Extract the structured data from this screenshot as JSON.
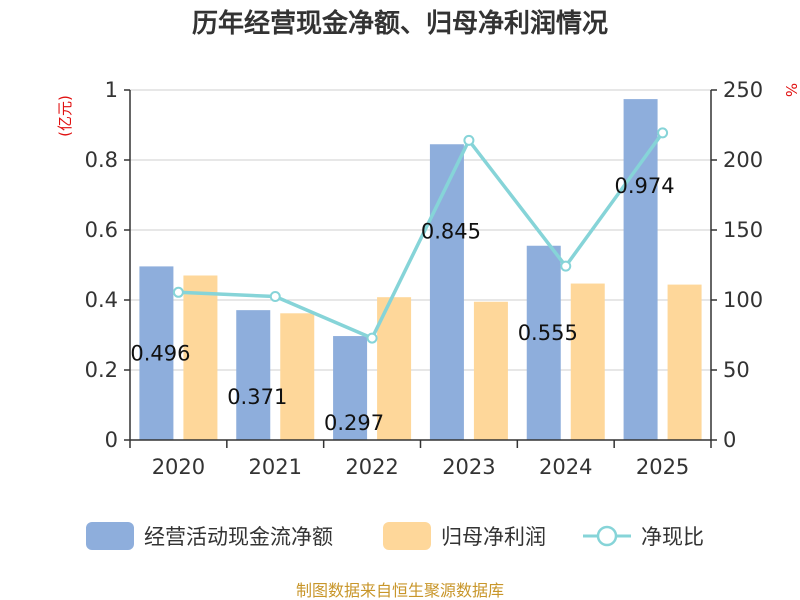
{
  "chart_data": {
    "type": "bar",
    "title": "历年经营现金净额、归母净利润情况",
    "y_unit_left": "(亿元)",
    "y_unit_right": "%",
    "categories": [
      "2020",
      "2021",
      "2022",
      "2023",
      "2024",
      "2025"
    ],
    "ylim_left": [
      0,
      1
    ],
    "yticks_left": [
      "0",
      "0.2",
      "0.4",
      "0.6",
      "0.8",
      "1"
    ],
    "ylim_right": [
      0,
      250
    ],
    "yticks_right": [
      "0",
      "50",
      "100",
      "150",
      "200",
      "250"
    ],
    "grid": true,
    "legend_position": "bottom",
    "series": [
      {
        "name": "经营活动现金流净额",
        "kind": "bar",
        "axis": "left",
        "color": "#8eaedc",
        "values": [
          0.496,
          0.371,
          0.297,
          0.845,
          0.555,
          0.974
        ],
        "labels": [
          "0.496",
          "0.371",
          "0.297",
          "0.845",
          "0.555",
          "0.974"
        ]
      },
      {
        "name": "归母净利润",
        "kind": "bar",
        "axis": "left",
        "color": "#fed79a",
        "values": [
          0.47,
          0.362,
          0.408,
          0.395,
          0.447,
          0.444
        ]
      },
      {
        "name": "净现比",
        "kind": "line",
        "axis": "right",
        "color": "#86d4d8",
        "values": [
          105.5,
          102.5,
          72.8,
          214.0,
          124.2,
          219.4
        ]
      }
    ],
    "source": "制图数据来自恒生聚源数据库"
  }
}
